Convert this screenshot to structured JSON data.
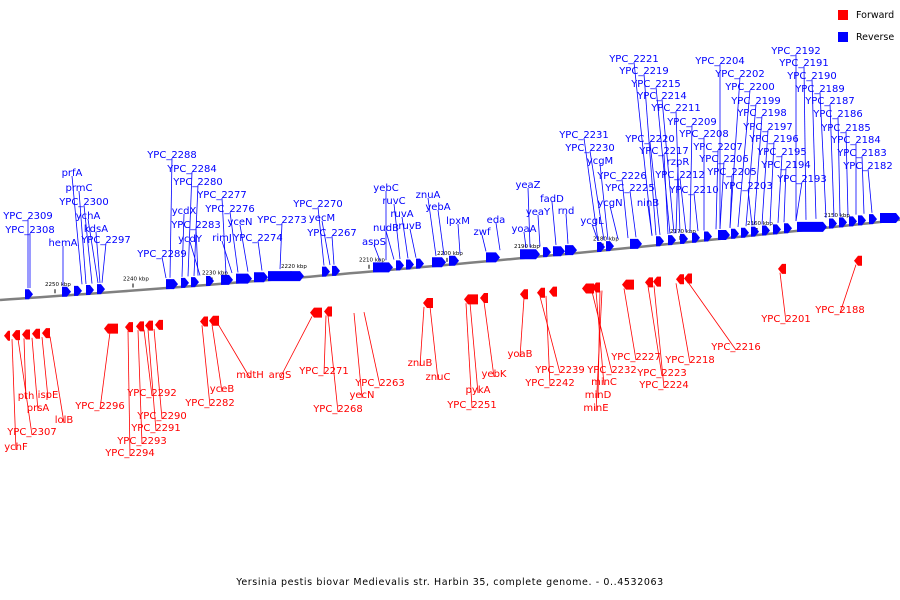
{
  "caption": "Yersinia pestis biovar Medievalis str. Harbin 35, complete genome. - 0..4532063",
  "legend": [
    {
      "label": "Forward",
      "color": "#ff0000"
    },
    {
      "label": "Reverse",
      "color": "#0000ff"
    }
  ],
  "colors": {
    "forward": "#ff0000",
    "reverse": "#0000ff",
    "backbone": "#808080"
  },
  "ticks": [
    {
      "label": "2250 kbp"
    },
    {
      "label": "2240 kbp"
    },
    {
      "label": "2230 kbp"
    },
    {
      "label": "2220 kbp"
    },
    {
      "label": "2210 kbp"
    },
    {
      "label": "2200 kbp"
    },
    {
      "label": "2190 kbp"
    },
    {
      "label": "2180 kbp"
    },
    {
      "label": "2170 kbp"
    },
    {
      "label": "2160 kbp"
    },
    {
      "label": "2150 kbp"
    }
  ],
  "reverse_genes": [
    {
      "name": "YPC_2309"
    },
    {
      "name": "YPC_2308"
    },
    {
      "name": "hemA"
    },
    {
      "name": "prfA"
    },
    {
      "name": "prmC"
    },
    {
      "name": "YPC_2300"
    },
    {
      "name": "ychA"
    },
    {
      "name": "kdsA"
    },
    {
      "name": "YPC_2297"
    },
    {
      "name": "YPC_2289"
    },
    {
      "name": "YPC_2288"
    },
    {
      "name": "ycdX"
    },
    {
      "name": "YPC_2284"
    },
    {
      "name": "YPC_2280"
    },
    {
      "name": "YPC_2283"
    },
    {
      "name": "ycdY"
    },
    {
      "name": "YPC_2277"
    },
    {
      "name": "YPC_2276"
    },
    {
      "name": "rimJ"
    },
    {
      "name": "yceN"
    },
    {
      "name": "YPC_2274"
    },
    {
      "name": "YPC_2273"
    },
    {
      "name": "YPC_2270"
    },
    {
      "name": "yecM"
    },
    {
      "name": "YPC_2267"
    },
    {
      "name": "yebC"
    },
    {
      "name": "aspS"
    },
    {
      "name": "ruvC"
    },
    {
      "name": "nudB"
    },
    {
      "name": "ruvA"
    },
    {
      "name": "ruvB"
    },
    {
      "name": "znuA"
    },
    {
      "name": "yebA"
    },
    {
      "name": "lpxM"
    },
    {
      "name": "zwf"
    },
    {
      "name": "eda"
    },
    {
      "name": "yeaZ"
    },
    {
      "name": "yoaA"
    },
    {
      "name": "yeaY"
    },
    {
      "name": "fadD"
    },
    {
      "name": "rnd"
    },
    {
      "name": "ycgL"
    },
    {
      "name": "YPC_2231"
    },
    {
      "name": "YPC_2230"
    },
    {
      "name": "ycgM"
    },
    {
      "name": "ycgN"
    },
    {
      "name": "YPC_2226"
    },
    {
      "name": "YPC_2225"
    },
    {
      "name": "ninB"
    },
    {
      "name": "YPC_2221"
    },
    {
      "name": "YPC_2219"
    },
    {
      "name": "YPC_2220"
    },
    {
      "name": "YPC_2217"
    },
    {
      "name": "rzpR"
    },
    {
      "name": "YPC_2215"
    },
    {
      "name": "YPC_2214"
    },
    {
      "name": "YPC_2212"
    },
    {
      "name": "YPC_2211"
    },
    {
      "name": "YPC_2210"
    },
    {
      "name": "YPC_2209"
    },
    {
      "name": "YPC_2208"
    },
    {
      "name": "YPC_2207"
    },
    {
      "name": "YPC_2206"
    },
    {
      "name": "YPC_2205"
    },
    {
      "name": "YPC_2204"
    },
    {
      "name": "YPC_2203"
    },
    {
      "name": "YPC_2202"
    },
    {
      "name": "YPC_2200"
    },
    {
      "name": "YPC_2199"
    },
    {
      "name": "YPC_2198"
    },
    {
      "name": "YPC_2197"
    },
    {
      "name": "YPC_2196"
    },
    {
      "name": "YPC_2195"
    },
    {
      "name": "YPC_2194"
    },
    {
      "name": "YPC_2193"
    },
    {
      "name": "YPC_2192"
    },
    {
      "name": "YPC_2191"
    },
    {
      "name": "YPC_2190"
    },
    {
      "name": "YPC_2189"
    },
    {
      "name": "YPC_2187"
    },
    {
      "name": "YPC_2186"
    },
    {
      "name": "YPC_2185"
    },
    {
      "name": "YPC_2184"
    },
    {
      "name": "YPC_2183"
    },
    {
      "name": "YPC_2182"
    }
  ],
  "forward_genes": [
    {
      "name": "ychF"
    },
    {
      "name": "YPC_2307"
    },
    {
      "name": "pth"
    },
    {
      "name": "prsA"
    },
    {
      "name": "ispE"
    },
    {
      "name": "lolB"
    },
    {
      "name": "YPC_2296"
    },
    {
      "name": "YPC_2294"
    },
    {
      "name": "YPC_2293"
    },
    {
      "name": "YPC_2292"
    },
    {
      "name": "YPC_2291"
    },
    {
      "name": "YPC_2290"
    },
    {
      "name": "YPC_2282"
    },
    {
      "name": "yceB"
    },
    {
      "name": "mdtH"
    },
    {
      "name": "argS"
    },
    {
      "name": "YPC_2271"
    },
    {
      "name": "YPC_2268"
    },
    {
      "name": "YPC_2263"
    },
    {
      "name": "yecN"
    },
    {
      "name": "znuB"
    },
    {
      "name": "znuC"
    },
    {
      "name": "pykA"
    },
    {
      "name": "YPC_2251"
    },
    {
      "name": "yebK"
    },
    {
      "name": "yoaB"
    },
    {
      "name": "YPC_2239"
    },
    {
      "name": "YPC_2242"
    },
    {
      "name": "YPC_2232"
    },
    {
      "name": "minC"
    },
    {
      "name": "minD"
    },
    {
      "name": "minE"
    },
    {
      "name": "YPC_2227"
    },
    {
      "name": "YPC_2223"
    },
    {
      "name": "YPC_2224"
    },
    {
      "name": "YPC_2218"
    },
    {
      "name": "YPC_2216"
    },
    {
      "name": "YPC_2201"
    },
    {
      "name": "YPC_2188"
    }
  ]
}
